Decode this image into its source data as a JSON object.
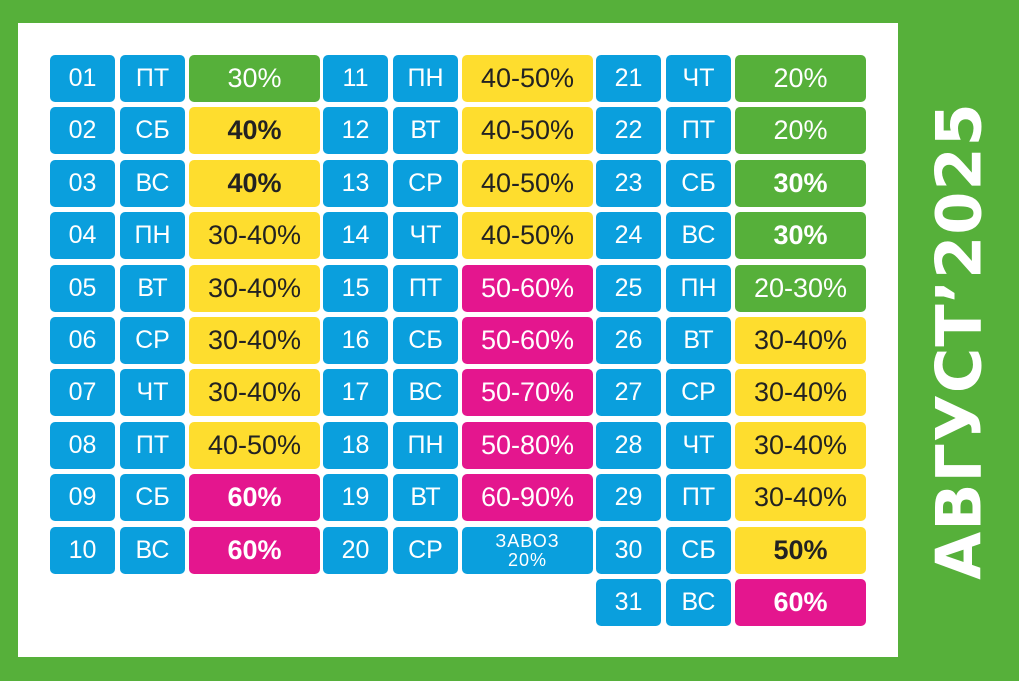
{
  "title": "АВГУСТ’2025",
  "colors": {
    "frame": "#56b03a",
    "panel": "#ffffff",
    "blue": "#0a9fdd",
    "green": "#56b03a",
    "yellow": "#fedd2e",
    "pink": "#e4168e"
  },
  "columns": [
    {
      "rows": [
        {
          "day": "01",
          "weekday": "ПТ",
          "discount": "30%",
          "color": "green",
          "bold": false
        },
        {
          "day": "02",
          "weekday": "СБ",
          "discount": "40%",
          "color": "yellow",
          "bold": true
        },
        {
          "day": "03",
          "weekday": "ВС",
          "discount": "40%",
          "color": "yellow",
          "bold": true
        },
        {
          "day": "04",
          "weekday": "ПН",
          "discount": "30-40%",
          "color": "yellow",
          "bold": false
        },
        {
          "day": "05",
          "weekday": "ВТ",
          "discount": "30-40%",
          "color": "yellow",
          "bold": false
        },
        {
          "day": "06",
          "weekday": "СР",
          "discount": "30-40%",
          "color": "yellow",
          "bold": false
        },
        {
          "day": "07",
          "weekday": "ЧТ",
          "discount": "30-40%",
          "color": "yellow",
          "bold": false
        },
        {
          "day": "08",
          "weekday": "ПТ",
          "discount": "40-50%",
          "color": "yellow",
          "bold": false
        },
        {
          "day": "09",
          "weekday": "СБ",
          "discount": "60%",
          "color": "pink",
          "bold": true
        },
        {
          "day": "10",
          "weekday": "ВС",
          "discount": "60%",
          "color": "pink",
          "bold": true
        }
      ]
    },
    {
      "rows": [
        {
          "day": "11",
          "weekday": "ПН",
          "discount": "40-50%",
          "color": "yellow",
          "bold": false
        },
        {
          "day": "12",
          "weekday": "ВТ",
          "discount": "40-50%",
          "color": "yellow",
          "bold": false
        },
        {
          "day": "13",
          "weekday": "СР",
          "discount": "40-50%",
          "color": "yellow",
          "bold": false
        },
        {
          "day": "14",
          "weekday": "ЧТ",
          "discount": "40-50%",
          "color": "yellow",
          "bold": false
        },
        {
          "day": "15",
          "weekday": "ПТ",
          "discount": "50-60%",
          "color": "pink",
          "bold": false
        },
        {
          "day": "16",
          "weekday": "СБ",
          "discount": "50-60%",
          "color": "pink",
          "bold": false
        },
        {
          "day": "17",
          "weekday": "ВС",
          "discount": "50-70%",
          "color": "pink",
          "bold": false
        },
        {
          "day": "18",
          "weekday": "ПН",
          "discount": "50-80%",
          "color": "pink",
          "bold": false
        },
        {
          "day": "19",
          "weekday": "ВТ",
          "discount": "60-90%",
          "color": "pink",
          "bold": false
        },
        {
          "day": "20",
          "weekday": "СР",
          "discount": "ЗАВОЗ",
          "discount_line2": "20%",
          "color": "blue",
          "bold": false
        }
      ]
    },
    {
      "rows": [
        {
          "day": "21",
          "weekday": "ЧТ",
          "discount": "20%",
          "color": "green",
          "bold": false
        },
        {
          "day": "22",
          "weekday": "ПТ",
          "discount": "20%",
          "color": "green",
          "bold": false
        },
        {
          "day": "23",
          "weekday": "СБ",
          "discount": "30%",
          "color": "green",
          "bold": true
        },
        {
          "day": "24",
          "weekday": "ВС",
          "discount": "30%",
          "color": "green",
          "bold": true
        },
        {
          "day": "25",
          "weekday": "ПН",
          "discount": "20-30%",
          "color": "green",
          "bold": false
        },
        {
          "day": "26",
          "weekday": "ВТ",
          "discount": "30-40%",
          "color": "yellow",
          "bold": false
        },
        {
          "day": "27",
          "weekday": "СР",
          "discount": "30-40%",
          "color": "yellow",
          "bold": false
        },
        {
          "day": "28",
          "weekday": "ЧТ",
          "discount": "30-40%",
          "color": "yellow",
          "bold": false
        },
        {
          "day": "29",
          "weekday": "ПТ",
          "discount": "30-40%",
          "color": "yellow",
          "bold": false
        },
        {
          "day": "30",
          "weekday": "СБ",
          "discount": "50%",
          "color": "yellow",
          "bold": true
        },
        {
          "day": "31",
          "weekday": "ВС",
          "discount": "60%",
          "color": "pink",
          "bold": true
        }
      ]
    }
  ]
}
